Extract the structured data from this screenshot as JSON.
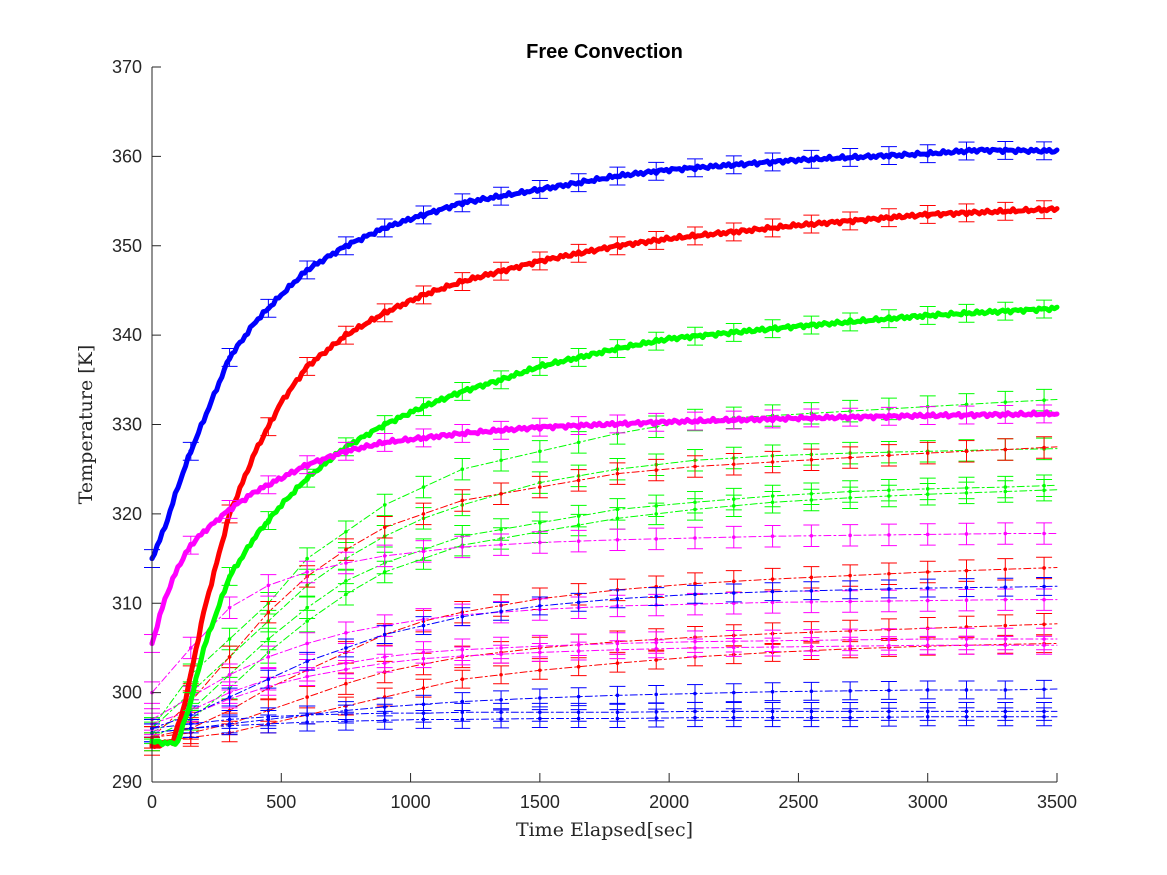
{
  "chart_data": {
    "type": "line",
    "title": "Free Convection",
    "xlabel": "Time Elapsed[sec]",
    "ylabel": "Temperature [K]",
    "xlim": [
      0,
      3500
    ],
    "ylim": [
      290,
      370
    ],
    "xticks": [
      0,
      500,
      1000,
      1500,
      2000,
      2500,
      3000,
      3500
    ],
    "yticks": [
      290,
      300,
      310,
      320,
      330,
      340,
      350,
      360,
      370
    ],
    "grid": false,
    "legend": "none",
    "error_bar_interval_sec": 150,
    "colors": {
      "blue": "#0000ff",
      "red": "#ff0000",
      "green": "#00ff00",
      "magenta": "#ff00ff"
    },
    "series": [
      {
        "style": "thick",
        "color": "blue",
        "errbar": 1.0,
        "x": [
          0,
          50,
          100,
          150,
          200,
          300,
          400,
          500,
          600,
          750,
          900,
          1000,
          1200,
          1500,
          1800,
          2000,
          2500,
          3000,
          3200,
          3500
        ],
        "y": [
          315,
          318.5,
          323,
          327,
          330.5,
          337.5,
          341.5,
          344.5,
          347.3,
          350,
          352,
          353,
          354.8,
          356.3,
          357.8,
          358.5,
          359.6,
          360.3,
          360.7,
          360.6
        ]
      },
      {
        "style": "thick",
        "color": "red",
        "errbar": 1.0,
        "x": [
          0,
          80,
          120,
          150,
          200,
          300,
          400,
          500,
          600,
          750,
          900,
          1050,
          1200,
          1500,
          1800,
          2000,
          2500,
          3000,
          3500
        ],
        "y": [
          294,
          294.5,
          298,
          302,
          309,
          320,
          327,
          332.5,
          336.5,
          340,
          342.5,
          344.5,
          346,
          348.3,
          350,
          350.8,
          352.3,
          353.5,
          354.1
        ]
      },
      {
        "style": "thick",
        "color": "green",
        "errbar": 1.0,
        "x": [
          0,
          80,
          100,
          150,
          200,
          300,
          400,
          500,
          600,
          750,
          900,
          1050,
          1200,
          1350,
          1500,
          1800,
          2000,
          2500,
          3000,
          3500
        ],
        "y": [
          294.5,
          294.3,
          294.5,
          299,
          305,
          313,
          317.5,
          321,
          324,
          327.5,
          330,
          332,
          333.7,
          335,
          336.5,
          338.5,
          339.6,
          341,
          342.2,
          343
        ]
      },
      {
        "style": "thick",
        "color": "magenta",
        "errbar": 1.0,
        "x": [
          0,
          50,
          100,
          150,
          200,
          300,
          400,
          500,
          600,
          750,
          900,
          1050,
          1200,
          1500,
          2000,
          2500,
          3000,
          3500
        ],
        "y": [
          305.5,
          310.5,
          314,
          316.5,
          318,
          320.5,
          322.5,
          324,
          325.5,
          327,
          328,
          328.5,
          329,
          329.7,
          330.3,
          330.7,
          331,
          331.2
        ]
      },
      {
        "style": "dash",
        "color": "green",
        "errbar": 1.2,
        "x": [
          0,
          150,
          300,
          450,
          600,
          750,
          900,
          1050,
          1200,
          1500,
          1800,
          2100,
          2400,
          2700,
          3000,
          3300,
          3500
        ],
        "y": [
          296,
          302,
          306,
          310,
          315,
          318,
          321,
          323,
          325,
          327,
          329,
          330.5,
          331,
          331.5,
          332,
          332.5,
          332.8
        ]
      },
      {
        "style": "dash",
        "color": "green",
        "errbar": 1.2,
        "x": [
          0,
          150,
          300,
          450,
          600,
          750,
          900,
          1050,
          1200,
          1500,
          1800,
          2100,
          2400,
          2700,
          3000,
          3300,
          3500
        ],
        "y": [
          296,
          300,
          304,
          308,
          312,
          315,
          317.5,
          319.5,
          321,
          323.5,
          325,
          326,
          326.5,
          326.8,
          327,
          327.2,
          327.3
        ]
      },
      {
        "style": "dash",
        "color": "green",
        "errbar": 1.2,
        "x": [
          0,
          150,
          300,
          450,
          600,
          750,
          900,
          1050,
          1200,
          1500,
          1800,
          2100,
          2400,
          2700,
          3000,
          3300,
          3500
        ],
        "y": [
          295.5,
          298,
          302,
          306,
          309.5,
          312.5,
          314.5,
          316,
          317.5,
          319,
          320.5,
          321.3,
          322,
          322.5,
          322.8,
          323,
          323.2
        ]
      },
      {
        "style": "dash",
        "color": "green",
        "errbar": 1.2,
        "x": [
          0,
          150,
          300,
          450,
          600,
          750,
          900,
          1050,
          1200,
          1500,
          1800,
          2100,
          2400,
          2700,
          3000,
          3300,
          3500
        ],
        "y": [
          295,
          297,
          300.5,
          304.5,
          308,
          311,
          313.5,
          315,
          316.5,
          318,
          319.5,
          320.5,
          321.3,
          321.8,
          322.2,
          322.5,
          322.7
        ]
      },
      {
        "style": "dash",
        "color": "red",
        "errbar": 1.2,
        "x": [
          0,
          150,
          300,
          450,
          600,
          750,
          900,
          1050,
          1200,
          1500,
          1800,
          2100,
          2400,
          2700,
          3000,
          3300,
          3500
        ],
        "y": [
          295,
          299,
          304,
          309,
          313,
          316,
          318.5,
          320,
          321.5,
          323,
          324.5,
          325.3,
          325.8,
          326.3,
          326.8,
          327.2,
          327.5
        ]
      },
      {
        "style": "dash",
        "color": "red",
        "errbar": 1.2,
        "x": [
          0,
          150,
          300,
          450,
          600,
          750,
          900,
          1050,
          1200,
          1500,
          1800,
          2100,
          2400,
          2700,
          3000,
          3300,
          3500
        ],
        "y": [
          295,
          296,
          298,
          300.5,
          302.5,
          304.5,
          306.5,
          308,
          309,
          310.5,
          311.5,
          312.2,
          312.7,
          313.1,
          313.5,
          313.8,
          314
        ]
      },
      {
        "style": "dash",
        "color": "red",
        "errbar": 1.2,
        "x": [
          0,
          150,
          300,
          450,
          600,
          750,
          900,
          1050,
          1200,
          1500,
          1800,
          2100,
          2400,
          2700,
          3000,
          3300,
          3500
        ],
        "y": [
          295,
          295.5,
          296.5,
          298,
          299.5,
          301,
          302.3,
          303.2,
          304,
          305,
          305.7,
          306.2,
          306.6,
          306.9,
          307.2,
          307.5,
          307.7
        ]
      },
      {
        "style": "dash",
        "color": "red",
        "errbar": 1.0,
        "x": [
          0,
          150,
          300,
          450,
          600,
          750,
          900,
          1050,
          1200,
          1500,
          1800,
          2100,
          2400,
          2700,
          3000,
          3300,
          3500
        ],
        "y": [
          294.5,
          295,
          295.5,
          296.5,
          297.5,
          298.5,
          299.5,
          300.5,
          301.5,
          302.5,
          303.3,
          304,
          304.5,
          304.9,
          305.2,
          305.4,
          305.5
        ]
      },
      {
        "style": "dash",
        "color": "magenta",
        "errbar": 1.2,
        "x": [
          0,
          150,
          300,
          450,
          600,
          750,
          900,
          1050,
          1200,
          1500,
          1800,
          2100,
          2400,
          2700,
          3000,
          3300,
          3500
        ],
        "y": [
          300,
          305,
          309.5,
          312,
          313.5,
          314.5,
          315.3,
          315.8,
          316.3,
          316.8,
          317.1,
          317.3,
          317.5,
          317.6,
          317.7,
          317.8,
          317.8
        ]
      },
      {
        "style": "dash",
        "color": "magenta",
        "errbar": 1.2,
        "x": [
          0,
          150,
          300,
          450,
          600,
          750,
          900,
          1050,
          1200,
          1500,
          1800,
          2100,
          2400,
          2700,
          3000,
          3300,
          3500
        ],
        "y": [
          297,
          299.5,
          302,
          304,
          305.5,
          306.7,
          307.5,
          308.2,
          308.7,
          309.3,
          309.7,
          309.9,
          310.1,
          310.2,
          310.3,
          310.4,
          310.4
        ]
      },
      {
        "style": "dash",
        "color": "magenta",
        "errbar": 1.2,
        "x": [
          0,
          150,
          300,
          450,
          600,
          750,
          900,
          1050,
          1200,
          1500,
          1800,
          2100,
          2400,
          2700,
          3000,
          3300,
          3500
        ],
        "y": [
          296.5,
          298,
          300,
          301.5,
          302.5,
          303.3,
          304,
          304.5,
          304.8,
          305.2,
          305.5,
          305.7,
          305.8,
          305.9,
          306,
          306,
          306
        ]
      },
      {
        "style": "dash",
        "color": "magenta",
        "errbar": 1.0,
        "x": [
          0,
          150,
          300,
          450,
          600,
          750,
          900,
          1050,
          1200,
          1500,
          1800,
          2100,
          2400,
          2700,
          3000,
          3300,
          3500
        ],
        "y": [
          296,
          297.5,
          299.3,
          300.7,
          301.8,
          302.6,
          303.3,
          303.8,
          304.1,
          304.5,
          304.8,
          305,
          305.1,
          305.2,
          305.3,
          305.3,
          305.3
        ]
      },
      {
        "style": "dash",
        "color": "blue",
        "errbar": 1.0,
        "x": [
          0,
          150,
          300,
          450,
          600,
          750,
          900,
          1050,
          1200,
          1500,
          1800,
          2100,
          2400,
          2700,
          3000,
          3300,
          3500
        ],
        "y": [
          296,
          297.5,
          299.5,
          301.5,
          303.5,
          305,
          306.5,
          307.5,
          308.5,
          309.7,
          310.5,
          311,
          311.3,
          311.5,
          311.7,
          311.8,
          311.9
        ]
      },
      {
        "style": "dash",
        "color": "blue",
        "errbar": 1.0,
        "x": [
          0,
          150,
          300,
          450,
          600,
          750,
          900,
          1050,
          1200,
          1500,
          1800,
          2100,
          2400,
          2700,
          3000,
          3300,
          3500
        ],
        "y": [
          295.5,
          296,
          296.5,
          297,
          297.5,
          298,
          298.4,
          298.7,
          299,
          299.4,
          299.7,
          299.9,
          300.1,
          300.2,
          300.3,
          300.3,
          300.4
        ]
      },
      {
        "style": "dash",
        "color": "blue",
        "errbar": 1.0,
        "x": [
          0,
          150,
          300,
          450,
          600,
          750,
          900,
          1050,
          1200,
          1500,
          1800,
          2100,
          2400,
          2700,
          3000,
          3300,
          3500
        ],
        "y": [
          296,
          296.5,
          297,
          297.3,
          297.5,
          297.6,
          297.7,
          297.7,
          297.8,
          297.8,
          297.8,
          297.9,
          297.9,
          297.9,
          297.9,
          297.9,
          297.9
        ]
      },
      {
        "style": "dash",
        "color": "blue",
        "errbar": 1.0,
        "x": [
          0,
          150,
          300,
          450,
          600,
          750,
          900,
          1050,
          1200,
          1500,
          1800,
          2100,
          2400,
          2700,
          3000,
          3300,
          3500
        ],
        "y": [
          295.5,
          296,
          296.3,
          296.5,
          296.7,
          296.8,
          296.9,
          297,
          297,
          297.1,
          297.1,
          297.2,
          297.2,
          297.2,
          297.3,
          297.3,
          297.3
        ]
      }
    ]
  }
}
